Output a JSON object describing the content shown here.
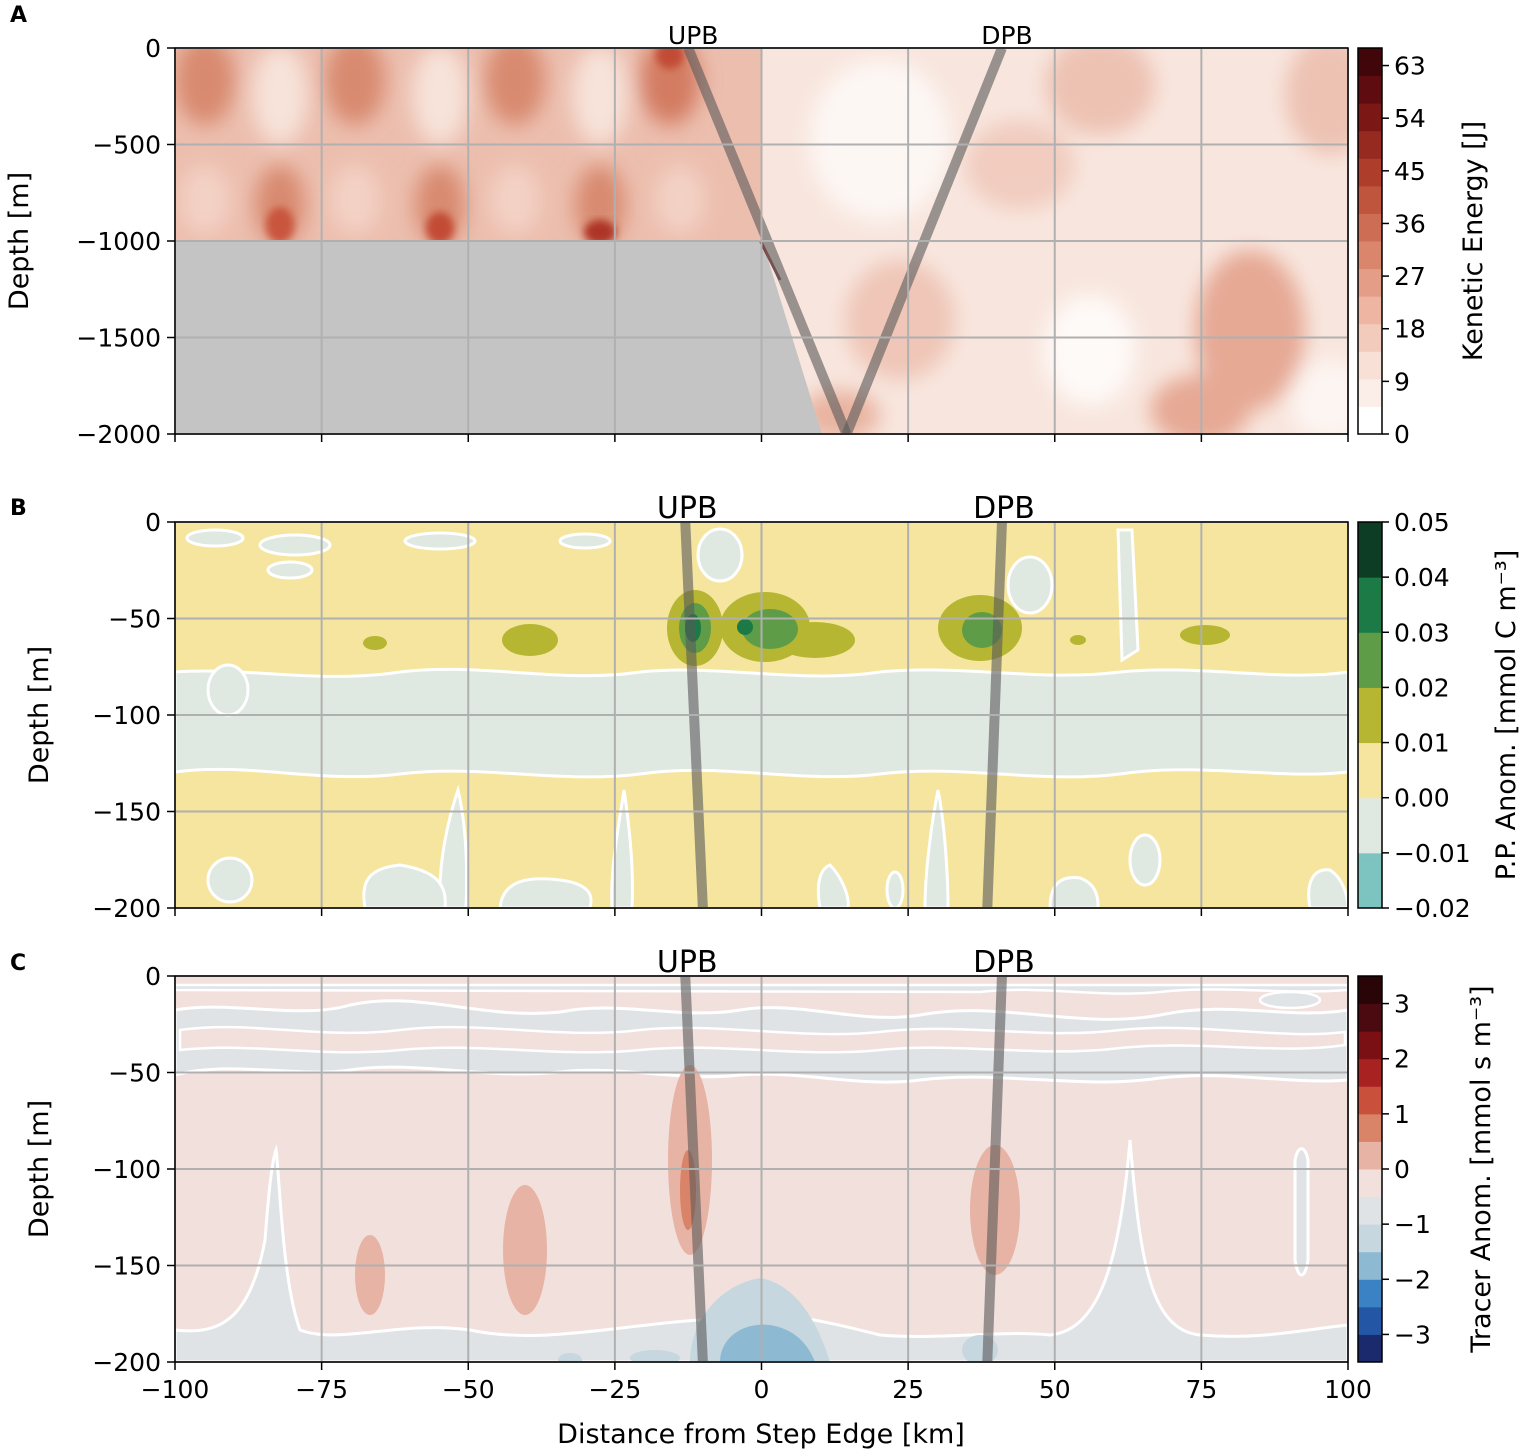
{
  "chart_data": [
    {
      "type": "heatmap",
      "panel_label": "A",
      "ylabel": "Depth [m]",
      "xlim": [
        -100,
        100
      ],
      "ylim": [
        -2000,
        0
      ],
      "yticks": [
        "0",
        "−500",
        "−1000",
        "−1500",
        "−2000"
      ],
      "yvals": [
        0,
        -500,
        -1000,
        -1500,
        -2000
      ],
      "colorbar": {
        "label": "Kenetic Energy [J]",
        "ticks": [
          "63",
          "54",
          "45",
          "36",
          "27",
          "18",
          "9",
          "0"
        ],
        "vals": [
          63,
          54,
          45,
          36,
          27,
          18,
          9,
          0
        ],
        "range": [
          0,
          66
        ],
        "colors": [
          "#ffffff",
          "#fbeee9",
          "#f8e0d7",
          "#f3cbbd",
          "#edb5a2",
          "#e49d86",
          "#da866c",
          "#cd6d53",
          "#c0553e",
          "#ae3d2c",
          "#962a20",
          "#7b1815",
          "#5e0c10",
          "#40060a"
        ]
      },
      "bathymetry": {
        "shelf_depth": -1000,
        "shelf_edge_x": 0,
        "slope_foot": [
          10,
          -2000
        ],
        "color": "#c4c4c4"
      },
      "beams": [
        {
          "label": "UPB",
          "x": [
            -12.5,
            14.5
          ],
          "y": [
            0,
            -2000
          ]
        },
        {
          "label": "DPB",
          "x": [
            41,
            14.5
          ],
          "y": [
            0,
            -2000
          ]
        }
      ]
    },
    {
      "type": "heatmap",
      "panel_label": "B",
      "ylabel": "Depth [m]",
      "xlim": [
        -100,
        100
      ],
      "ylim": [
        -200,
        0
      ],
      "yticks": [
        "0",
        "−50",
        "−100",
        "−150",
        "−200"
      ],
      "yvals": [
        0,
        -50,
        -100,
        -150,
        -200
      ],
      "colorbar": {
        "label": "P.P. Anom. [mmol C m⁻³]",
        "ticks": [
          "0.05",
          "0.04",
          "0.03",
          "0.02",
          "0.01",
          "0.00",
          "−0.01",
          "−0.02"
        ],
        "vals": [
          0.05,
          0.04,
          0.03,
          0.02,
          0.01,
          0.0,
          -0.01,
          -0.02
        ],
        "range": [
          -0.02,
          0.05
        ],
        "colors": [
          "#7dc3bf",
          "#e0e8e2",
          "#f5e59e",
          "#b6b632",
          "#5f9c48",
          "#1b7a45",
          "#0e3d26"
        ]
      },
      "beams": [
        {
          "label": "UPB",
          "x": [
            -13,
            -10
          ],
          "y": [
            0,
            -200
          ]
        },
        {
          "label": "DPB",
          "x": [
            41,
            38.5
          ],
          "y": [
            0,
            -200
          ]
        }
      ],
      "features": [
        {
          "x": -12,
          "y": -55,
          "level": 0.035
        },
        {
          "x": -2,
          "y": -55,
          "level": 0.03
        },
        {
          "x": 38,
          "y": -55,
          "level": 0.025
        },
        {
          "x": -40,
          "y": -60,
          "level": 0.015
        },
        {
          "x": 82,
          "y": -58,
          "level": 0.015
        }
      ]
    },
    {
      "type": "heatmap",
      "panel_label": "C",
      "xlabel": "Distance from Step Edge [km]",
      "ylabel": "Depth [m]",
      "xlim": [
        -100,
        100
      ],
      "ylim": [
        -200,
        0
      ],
      "xticks": [
        "−100",
        "−75",
        "−50",
        "−25",
        "0",
        "25",
        "50",
        "75",
        "100"
      ],
      "xvals": [
        -100,
        -75,
        -50,
        -25,
        0,
        25,
        50,
        75,
        100
      ],
      "yticks": [
        "0",
        "−50",
        "−100",
        "−150",
        "−200"
      ],
      "yvals": [
        0,
        -50,
        -100,
        -150,
        -200
      ],
      "colorbar": {
        "label": "Tracer Anom. [mmol s m⁻³]",
        "ticks": [
          "3",
          "2",
          "1",
          "0",
          "−1",
          "−2",
          "−3"
        ],
        "vals": [
          3,
          2,
          1,
          0,
          -1,
          -2,
          -3
        ],
        "range": [
          -3.5,
          3.5
        ],
        "colors": [
          "#1a2a6c",
          "#2456a6",
          "#3b82c4",
          "#8db9d3",
          "#c7d7df",
          "#dfe3e6",
          "#f2e0dc",
          "#e7b3a4",
          "#d98468",
          "#c9503a",
          "#a92222",
          "#7a0f14",
          "#4b0a10",
          "#2a0508"
        ]
      },
      "beams": [
        {
          "label": "UPB",
          "x": [
            -13,
            -10
          ],
          "y": [
            0,
            -200
          ]
        },
        {
          "label": "DPB",
          "x": [
            41,
            38.5
          ],
          "y": [
            0,
            -200
          ]
        }
      ]
    }
  ]
}
